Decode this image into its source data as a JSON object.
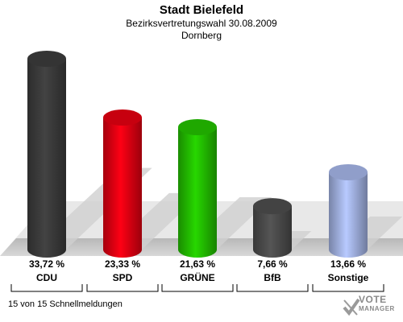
{
  "header": {
    "title": "Stadt Bielefeld",
    "subtitle": "Bezirksvertretungswahl 30.08.2009",
    "district": "Dornberg"
  },
  "footer": {
    "note": "15 von 15 Schnellmeldungen",
    "logo_line1": "VOTE",
    "logo_line2": "MANAGER"
  },
  "chart_data": {
    "type": "bar",
    "title": "Stadt Bielefeld",
    "subtitle": "Bezirksvertretungswahl 30.08.2009",
    "categories": [
      "CDU",
      "SPD",
      "GRÜNE",
      "BfB",
      "Sonstige"
    ],
    "values": [
      33.72,
      23.33,
      21.63,
      7.66,
      13.66
    ],
    "value_labels": [
      "33,72 %",
      "23,33 %",
      "21,63 %",
      "7,66 %",
      "13,66 %"
    ],
    "colors": [
      "#3a3a3a",
      "#dd0011",
      "#22bb00",
      "#4a4a4a",
      "#a0b0e0"
    ],
    "unit": "%",
    "ylim": [
      0,
      35
    ],
    "grid": false,
    "legend": "none"
  }
}
